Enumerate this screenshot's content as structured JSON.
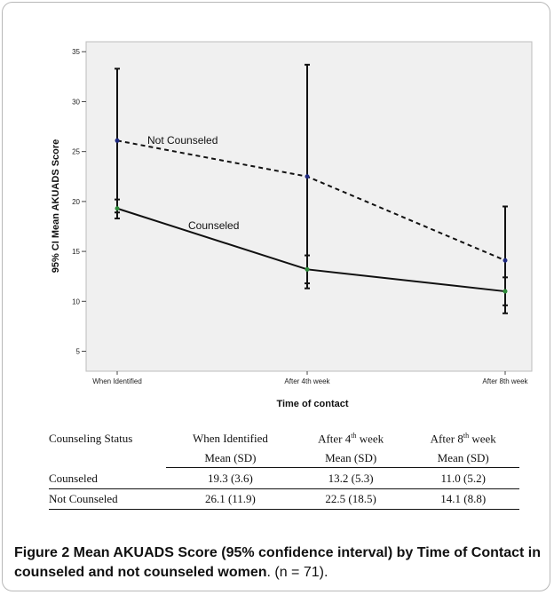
{
  "chart_data": {
    "type": "line",
    "categories": [
      "When Identified",
      "After 4th week",
      "After 8th week"
    ],
    "series": [
      {
        "name": "Not Counseled",
        "style": "dashed",
        "values": [
          26.1,
          22.5,
          14.1
        ],
        "ci_low": [
          18.9,
          11.3,
          8.8
        ],
        "ci_high": [
          33.3,
          33.7,
          19.5
        ],
        "marker_color": "#1f2a80"
      },
      {
        "name": "Counseled",
        "style": "solid",
        "values": [
          19.3,
          13.2,
          11.0
        ],
        "ci_low": [
          18.3,
          11.8,
          9.6
        ],
        "ci_high": [
          20.2,
          14.6,
          12.4
        ],
        "marker_color": "#2e8b3a"
      }
    ],
    "ylabel": "95% CI Mean AKUADS Score",
    "xlabel": "Time of contact",
    "ylim": [
      3,
      36
    ],
    "yticks": [
      5,
      10,
      15,
      20,
      25,
      30,
      35
    ],
    "grid": false,
    "legend": "inline labels"
  },
  "table": {
    "header": {
      "status": "Counseling Status",
      "c1": "When Identified",
      "c2_pre": "After 4",
      "c2_sup": "th",
      "c2_post": " week",
      "c3_pre": "After 8",
      "c3_sup": "th",
      "c3_post": " week"
    },
    "subheader": [
      "Mean (SD)",
      "Mean (SD)",
      "Mean (SD)"
    ],
    "rows": [
      {
        "status": "Counseled",
        "c1": "19.3 (3.6)",
        "c2": "13.2 (5.3)",
        "c3": "11.0 (5.2)"
      },
      {
        "status": "Not Counseled",
        "c1": "26.1 (11.9)",
        "c2": "22.5 (18.5)",
        "c3": "14.1 (8.8)"
      }
    ]
  },
  "caption": {
    "bold": "Figure 2 Mean AKUADS Score (95% confidence interval) by Time of Contact in counseled and not counseled women",
    "rest": ". (n = 71)."
  }
}
